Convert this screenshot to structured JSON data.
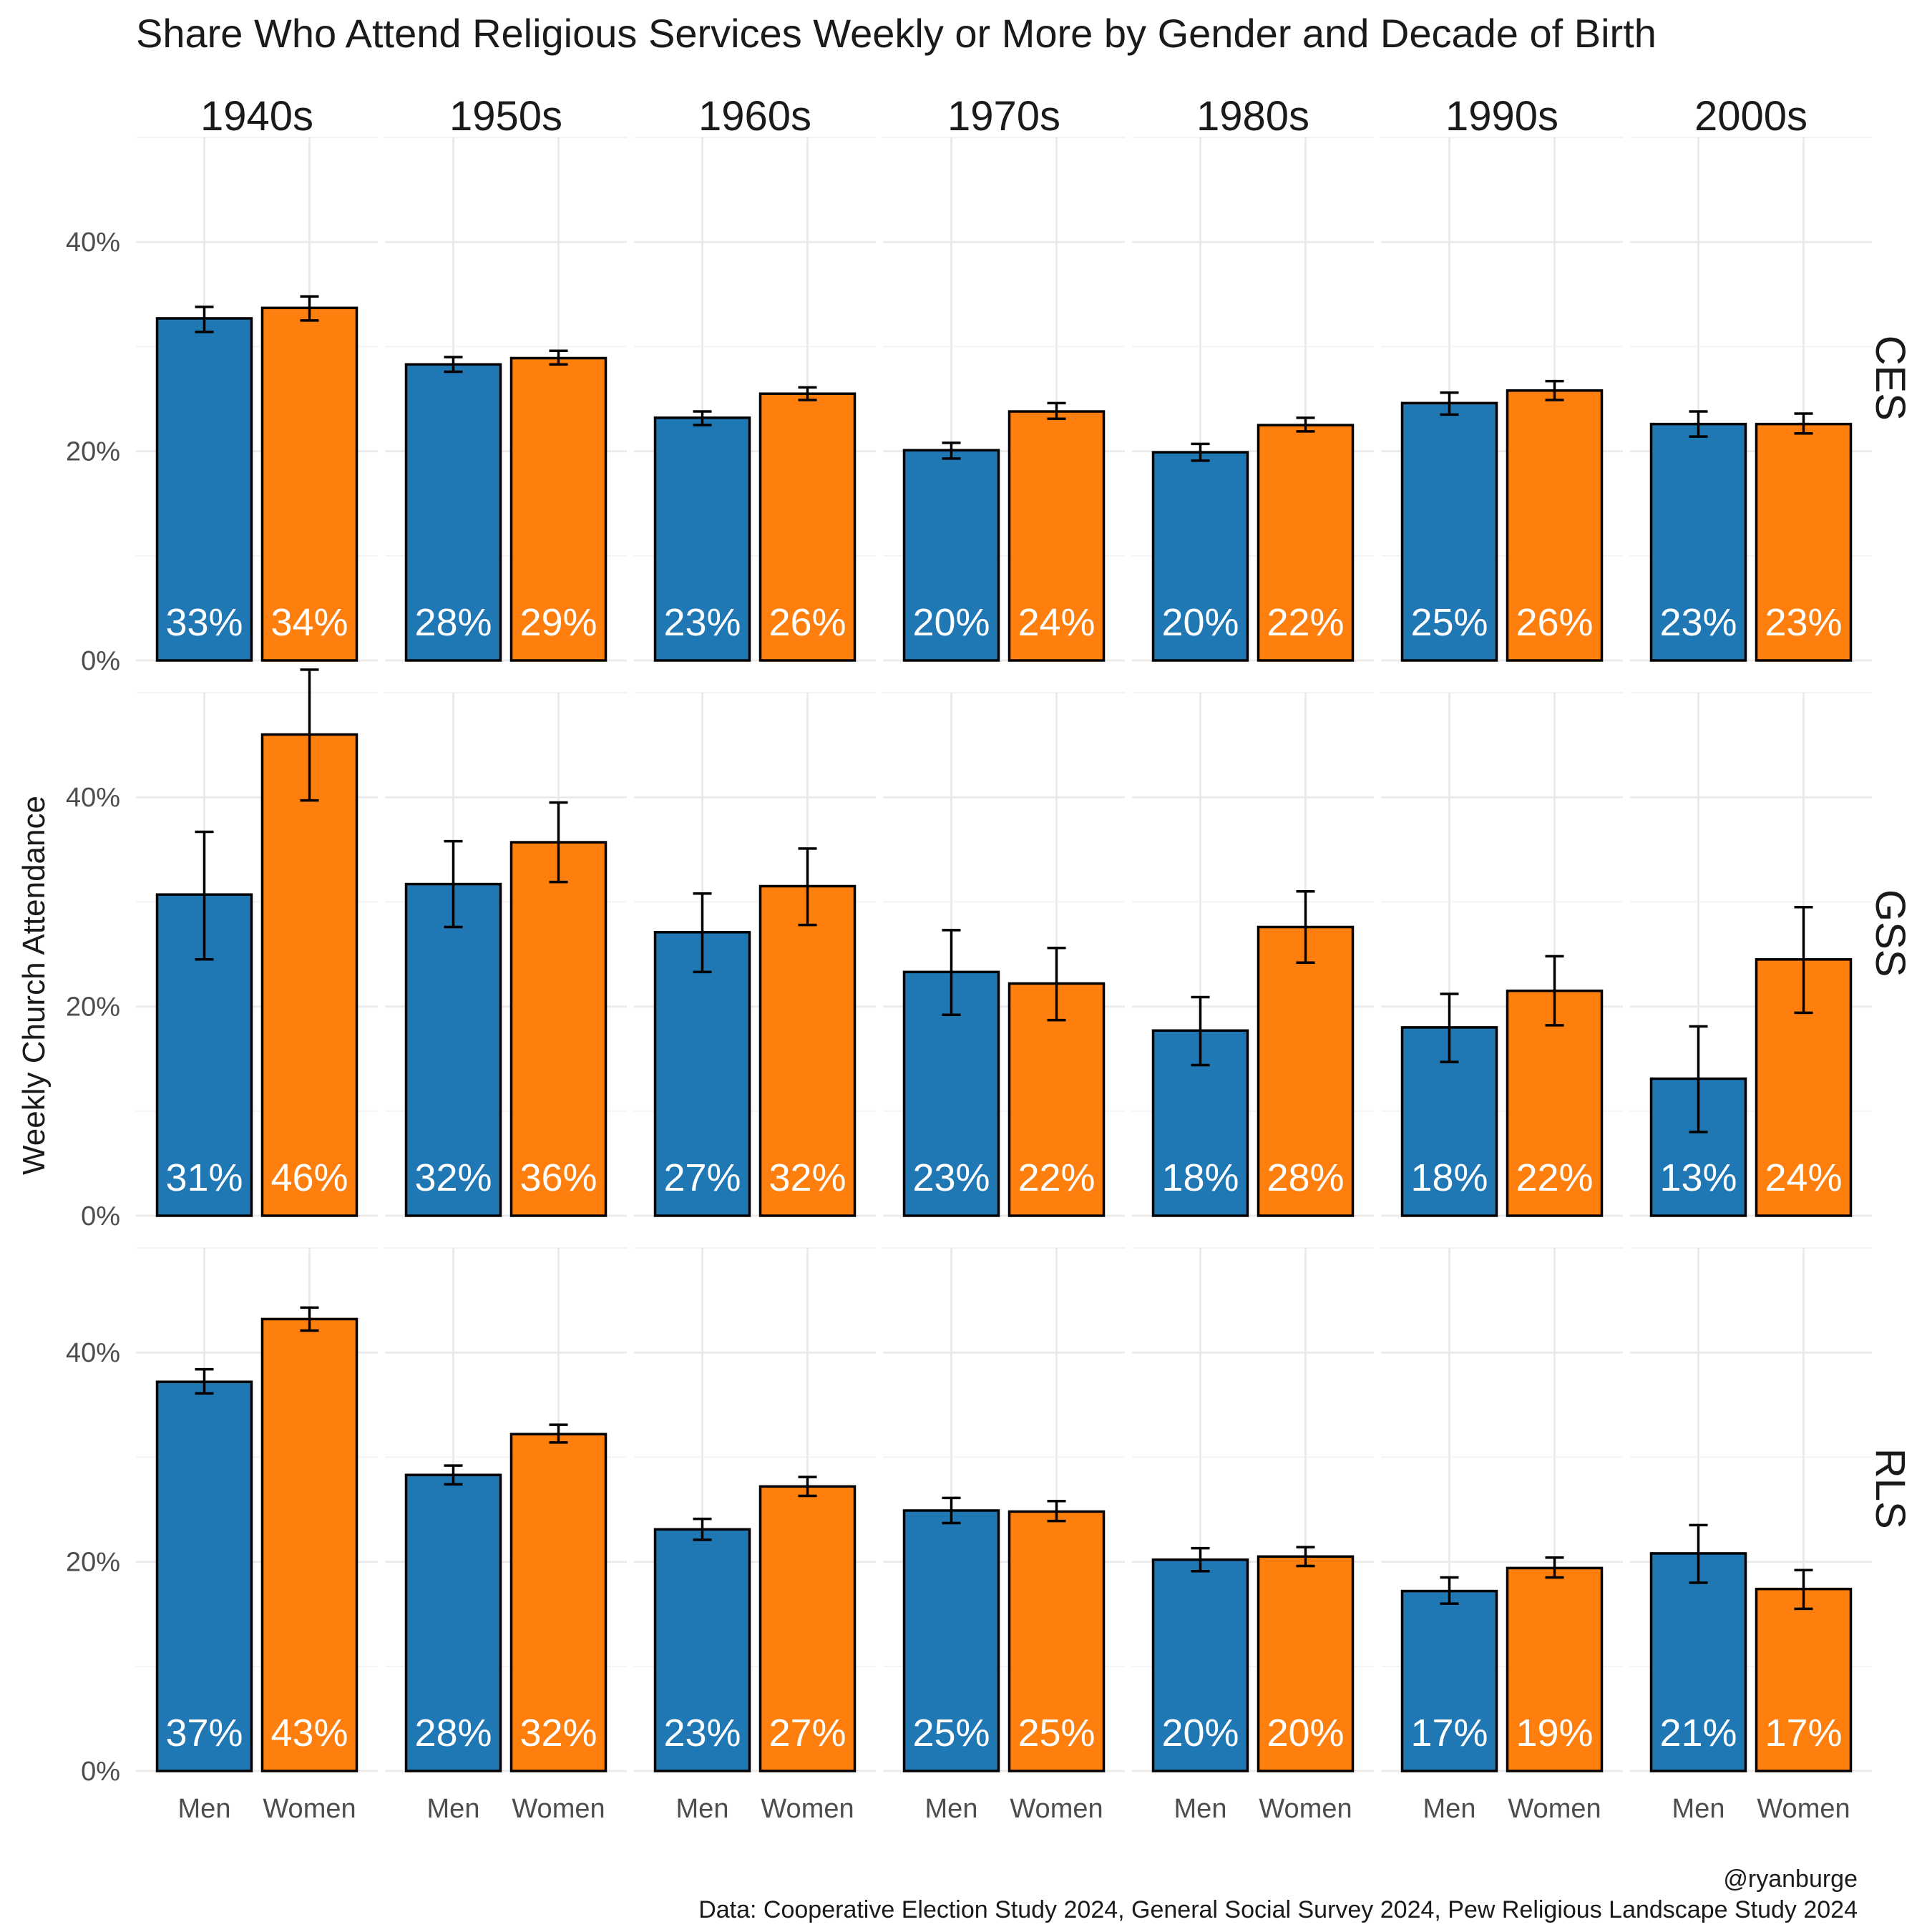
{
  "chart_data": {
    "type": "bar",
    "title": "Share Who Attend Religious Services Weekly or More by Gender and Decade of Birth",
    "ylabel": "Weekly Church Attendance",
    "xlabel": "",
    "ylim": [
      0,
      0.5
    ],
    "y_ticks": [
      0,
      0.2,
      0.4
    ],
    "y_tick_labels": [
      "0%",
      "20%",
      "40%"
    ],
    "grid": true,
    "legend": "none",
    "decades": [
      "1940s",
      "1950s",
      "1960s",
      "1970s",
      "1980s",
      "1990s",
      "2000s"
    ],
    "categories": [
      "Men",
      "Women"
    ],
    "colors": {
      "Men": "#1f77b4",
      "Women": "#ff7f0e"
    },
    "panels": [
      {
        "name": "CES",
        "series": [
          {
            "name": "Men",
            "values": [
              0.327,
              0.283,
              0.232,
              0.201,
              0.199,
              0.246,
              0.226
            ],
            "labels": [
              "33%",
              "28%",
              "23%",
              "20%",
              "20%",
              "25%",
              "23%"
            ],
            "ci_low": [
              0.314,
              0.276,
              0.225,
              0.193,
              0.191,
              0.235,
              0.214
            ],
            "ci_high": [
              0.338,
              0.29,
              0.238,
              0.208,
              0.207,
              0.256,
              0.238
            ]
          },
          {
            "name": "Women",
            "values": [
              0.337,
              0.289,
              0.255,
              0.238,
              0.225,
              0.258,
              0.226
            ],
            "labels": [
              "34%",
              "29%",
              "26%",
              "24%",
              "22%",
              "26%",
              "23%"
            ],
            "ci_low": [
              0.325,
              0.283,
              0.249,
              0.231,
              0.219,
              0.249,
              0.217
            ],
            "ci_high": [
              0.348,
              0.296,
              0.261,
              0.246,
              0.232,
              0.267,
              0.236
            ]
          }
        ]
      },
      {
        "name": "GSS",
        "series": [
          {
            "name": "Men",
            "values": [
              0.307,
              0.317,
              0.271,
              0.233,
              0.177,
              0.18,
              0.131
            ],
            "labels": [
              "31%",
              "32%",
              "27%",
              "23%",
              "18%",
              "18%",
              "13%"
            ],
            "ci_low": [
              0.245,
              0.276,
              0.233,
              0.192,
              0.144,
              0.147,
              0.08
            ],
            "ci_high": [
              0.367,
              0.358,
              0.308,
              0.273,
              0.209,
              0.212,
              0.181
            ]
          },
          {
            "name": "Women",
            "values": [
              0.46,
              0.357,
              0.315,
              0.222,
              0.276,
              0.215,
              0.245
            ],
            "labels": [
              "46%",
              "36%",
              "32%",
              "22%",
              "28%",
              "22%",
              "24%"
            ],
            "ci_low": [
              0.397,
              0.319,
              0.278,
              0.187,
              0.242,
              0.182,
              0.194
            ],
            "ci_high": [
              0.522,
              0.395,
              0.351,
              0.256,
              0.31,
              0.248,
              0.295
            ]
          }
        ]
      },
      {
        "name": "RLS",
        "series": [
          {
            "name": "Men",
            "values": [
              0.372,
              0.283,
              0.231,
              0.249,
              0.202,
              0.172,
              0.208
            ],
            "labels": [
              "37%",
              "28%",
              "23%",
              "25%",
              "20%",
              "17%",
              "21%"
            ],
            "ci_low": [
              0.361,
              0.274,
              0.221,
              0.237,
              0.191,
              0.16,
              0.18
            ],
            "ci_high": [
              0.384,
              0.292,
              0.241,
              0.261,
              0.213,
              0.185,
              0.235
            ]
          },
          {
            "name": "Women",
            "values": [
              0.432,
              0.322,
              0.272,
              0.248,
              0.205,
              0.194,
              0.174
            ],
            "labels": [
              "43%",
              "32%",
              "27%",
              "25%",
              "20%",
              "19%",
              "17%"
            ],
            "ci_low": [
              0.421,
              0.314,
              0.263,
              0.239,
              0.196,
              0.185,
              0.155
            ],
            "ci_high": [
              0.443,
              0.331,
              0.281,
              0.258,
              0.214,
              0.204,
              0.192
            ]
          }
        ]
      }
    ],
    "caption": [
      "@ryanburge",
      "Data: Cooperative Election Study 2024, General Social Survey 2024, Pew Religious Landscape Study 2024"
    ]
  }
}
